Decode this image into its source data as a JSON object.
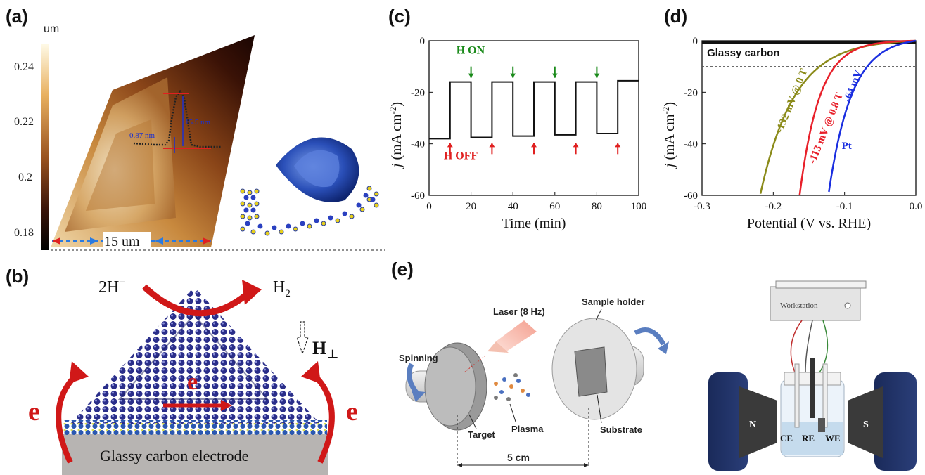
{
  "panels": {
    "a": "(a)",
    "b": "(b)",
    "c": "(c)",
    "d": "(d)",
    "e": "(e)"
  },
  "panel_a": {
    "colorbar_unit": "um",
    "colorbar_ticks": [
      "0.24",
      "0.22",
      "0.2",
      "0.18"
    ],
    "scale_label": "15 um",
    "height_label": "15.5 nm",
    "step_label": "0.87 nm"
  },
  "panel_b": {
    "reactant": "2H",
    "reactant_sup": "+",
    "product": "H",
    "product_sub": "2",
    "field_label": "H",
    "field_sub": "⊥",
    "electron_left": "e",
    "electron_center": "e",
    "electron_right": "e",
    "electrode_label": "Glassy carbon electrode"
  },
  "chart_data": [
    {
      "type": "line",
      "panel": "c",
      "xlabel": "Time (min)",
      "ylabel_main": "j",
      "ylabel_unit": " (mA cm",
      "ylabel_exp": "-2",
      "ylabel_close": ")",
      "xlim": [
        0,
        100
      ],
      "ylim": [
        -60,
        0
      ],
      "xticks": [
        "0",
        "20",
        "40",
        "60",
        "80",
        "100"
      ],
      "yticks": [
        "0",
        "-20",
        "-40",
        "-60"
      ],
      "annotation_on": "H ON",
      "annotation_off": "H OFF",
      "on_times": [
        20,
        40,
        60,
        80
      ],
      "off_times": [
        10,
        30,
        50,
        70,
        90
      ],
      "x": [
        0,
        10,
        10,
        20,
        20,
        30,
        30,
        40,
        40,
        50,
        50,
        60,
        60,
        70,
        70,
        80,
        80,
        90,
        90,
        100
      ],
      "y": [
        -38,
        -38,
        -16,
        -16,
        -37.5,
        -37.5,
        -16,
        -16,
        -37,
        -37,
        -16,
        -16,
        -36.5,
        -36.5,
        -16,
        -16,
        -36,
        -36,
        -15.5,
        -15.5
      ],
      "colors": {
        "line": "#111111",
        "on": "#1a8a1a",
        "off": "#e02020"
      }
    },
    {
      "type": "line",
      "panel": "d",
      "xlabel": "Potential (V vs. RHE)",
      "ylabel_main": "j",
      "ylabel_unit": " (mA cm",
      "ylabel_exp": "-2",
      "ylabel_close": ")",
      "xlim": [
        -0.3,
        0.0
      ],
      "ylim": [
        -60,
        0
      ],
      "xticks": [
        "-0.3",
        "-0.2",
        "-0.1",
        "0.0"
      ],
      "yticks": [
        "0",
        "-20",
        "-40",
        "-60"
      ],
      "reference_j": -10,
      "series": [
        {
          "name": "Glassy carbon",
          "onset": null,
          "j60_at": null,
          "color": "#111111"
        },
        {
          "name": "-132 mV @ 0 T",
          "onset": -0.132,
          "j60_at": -0.218,
          "color": "#8b8b1a"
        },
        {
          "name": "-113 mV @ 0.8 T",
          "onset": -0.113,
          "j60_at": -0.163,
          "color": "#e8202a"
        },
        {
          "name": "-64 mV",
          "onset": -0.064,
          "j60_at": -0.122,
          "color": "#1a2ee0"
        }
      ],
      "pt_label": "Pt"
    }
  ],
  "panel_e": {
    "laser": "Laser (8 Hz)",
    "spinning": "Spinning",
    "target": "Target",
    "plasma": "Plasma",
    "sample_holder": "Sample holder",
    "substrate": "Substrate",
    "distance": "5 cm",
    "workstation": "Workstation",
    "magnet_n": "N",
    "magnet_s": "S",
    "ce": "CE",
    "re": "RE",
    "we": "WE"
  }
}
